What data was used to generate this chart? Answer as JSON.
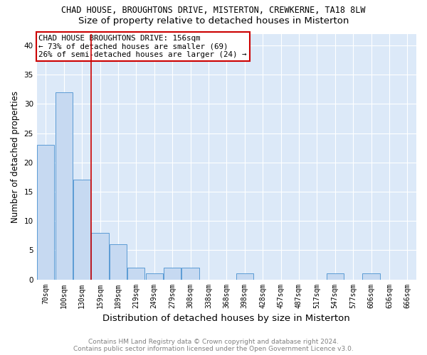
{
  "title1": "CHAD HOUSE, BROUGHTONS DRIVE, MISTERTON, CREWKERNE, TA18 8LW",
  "title2": "Size of property relative to detached houses in Misterton",
  "xlabel": "Distribution of detached houses by size in Misterton",
  "ylabel": "Number of detached properties",
  "categories": [
    "70sqm",
    "100sqm",
    "130sqm",
    "159sqm",
    "189sqm",
    "219sqm",
    "249sqm",
    "279sqm",
    "308sqm",
    "338sqm",
    "368sqm",
    "398sqm",
    "428sqm",
    "457sqm",
    "487sqm",
    "517sqm",
    "547sqm",
    "577sqm",
    "606sqm",
    "636sqm",
    "666sqm"
  ],
  "values": [
    23,
    32,
    17,
    8,
    6,
    2,
    1,
    2,
    2,
    0,
    0,
    1,
    0,
    0,
    0,
    0,
    1,
    0,
    1,
    0,
    0
  ],
  "bar_color": "#c6d9f1",
  "bar_edge_color": "#5b9bd5",
  "vline_x": 2.5,
  "vline_color": "#cc0000",
  "annotation_text": "CHAD HOUSE BROUGHTONS DRIVE: 156sqm\n← 73% of detached houses are smaller (69)\n26% of semi-detached houses are larger (24) →",
  "annotation_box_color": "white",
  "annotation_box_edge_color": "#cc0000",
  "ylim": [
    0,
    42
  ],
  "yticks": [
    0,
    5,
    10,
    15,
    20,
    25,
    30,
    35,
    40
  ],
  "footer": "Contains HM Land Registry data © Crown copyright and database right 2024.\nContains public sector information licensed under the Open Government Licence v3.0.",
  "background_color": "#dce9f8",
  "title1_fontsize": 8.5,
  "title2_fontsize": 9.5,
  "xlabel_fontsize": 9.5,
  "ylabel_fontsize": 8.5,
  "footer_fontsize": 6.5,
  "annotation_fontsize": 7.8,
  "tick_fontsize": 7,
  "ytick_fontsize": 7.5
}
